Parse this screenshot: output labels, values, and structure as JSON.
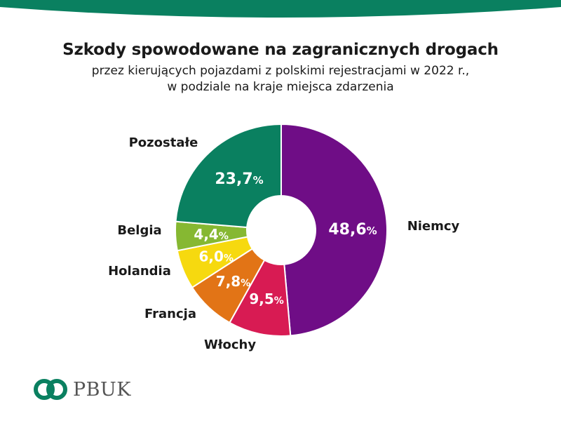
{
  "header": {
    "title": "Szkody spowodowane na zagranicznych drogach",
    "subtitle_line1": "przez kierujących pojazdami z polskimi rejestracjami w 2022 r.,",
    "subtitle_line2": "w podziale na kraje miejsca zdarzenia"
  },
  "colors": {
    "brand_green": "#0a8060",
    "Niemcy": "#6f0d86",
    "Włochy": "#d81b53",
    "Francja": "#e27416",
    "Holandia": "#f6d90f",
    "Belgia": "#86b832",
    "Pozostałe": "#0a8060"
  },
  "chart_data": {
    "type": "pie",
    "title": "Szkody spowodowane na zagranicznych drogach",
    "categories": [
      "Niemcy",
      "Włochy",
      "Francja",
      "Holandia",
      "Belgia",
      "Pozostałe"
    ],
    "values": [
      48.6,
      9.5,
      7.8,
      6.0,
      4.4,
      23.7
    ],
    "value_labels": [
      "48,6",
      "9,5",
      "7,8",
      "6,0",
      "4,4",
      "23,7"
    ],
    "unit": "%",
    "donut": true
  },
  "logo": {
    "text": "PBUK",
    "icon": "pbuk-logo-icon"
  }
}
